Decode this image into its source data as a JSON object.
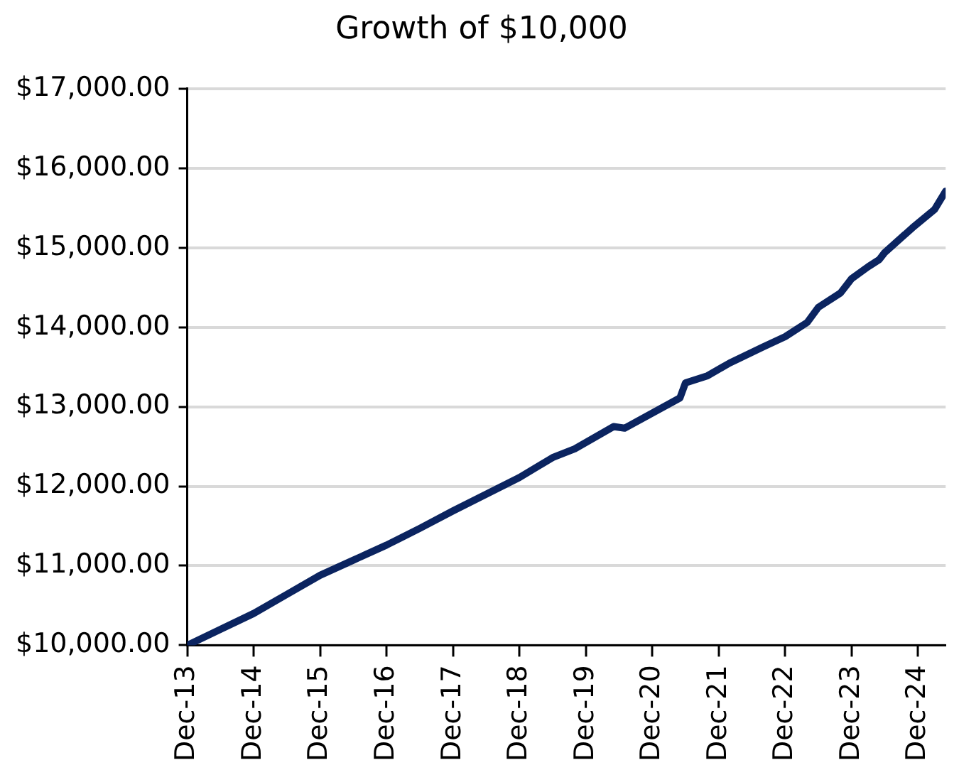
{
  "chart_data": {
    "type": "line",
    "title": "Growth of $10,000",
    "x": [
      "2013-12",
      "2014-06",
      "2014-12",
      "2015-06",
      "2015-12",
      "2016-06",
      "2016-12",
      "2017-06",
      "2017-12",
      "2018-06",
      "2018-12",
      "2019-06",
      "2019-10",
      "2020-05",
      "2020-07",
      "2021-05",
      "2021-06",
      "2021-10",
      "2022-02",
      "2022-08",
      "2022-12",
      "2023-04",
      "2023-06",
      "2023-10",
      "2023-12",
      "2024-03",
      "2024-05",
      "2024-06",
      "2024-11",
      "2025-03",
      "2025-05"
    ],
    "series": [
      {
        "color": "#0b2460",
        "values": [
          10000,
          10200,
          10400,
          10640,
          10880,
          11070,
          11260,
          11470,
          11690,
          11900,
          12110,
          12360,
          12470,
          12750,
          12730,
          13110,
          13300,
          13390,
          13550,
          13750,
          13880,
          14060,
          14250,
          14430,
          14610,
          14760,
          14850,
          14940,
          15250,
          15480,
          15710
        ]
      }
    ],
    "xlim": [
      "2013-12",
      "2025-05"
    ],
    "xticks": [
      {
        "value": "2013-12",
        "label": "Dec-13"
      },
      {
        "value": "2014-12",
        "label": "Dec-14"
      },
      {
        "value": "2015-12",
        "label": "Dec-15"
      },
      {
        "value": "2016-12",
        "label": "Dec-16"
      },
      {
        "value": "2017-12",
        "label": "Dec-17"
      },
      {
        "value": "2018-12",
        "label": "Dec-18"
      },
      {
        "value": "2019-12",
        "label": "Dec-19"
      },
      {
        "value": "2020-12",
        "label": "Dec-20"
      },
      {
        "value": "2021-12",
        "label": "Dec-21"
      },
      {
        "value": "2022-12",
        "label": "Dec-22"
      },
      {
        "value": "2023-12",
        "label": "Dec-23"
      },
      {
        "value": "2024-12",
        "label": "Dec-24"
      }
    ],
    "ylim": [
      10000,
      17000
    ],
    "yticks": [
      {
        "value": 10000,
        "label": "$10,000.00"
      },
      {
        "value": 11000,
        "label": "$11,000.00"
      },
      {
        "value": 12000,
        "label": "$12,000.00"
      },
      {
        "value": 13000,
        "label": "$13,000.00"
      },
      {
        "value": 14000,
        "label": "$14,000.00"
      },
      {
        "value": 15000,
        "label": "$15,000.00"
      },
      {
        "value": 16000,
        "label": "$16,000.00"
      },
      {
        "value": 17000,
        "label": "$17,000.00"
      }
    ],
    "grid": "y",
    "legend": false,
    "marker": "none",
    "line_style": "solid"
  }
}
